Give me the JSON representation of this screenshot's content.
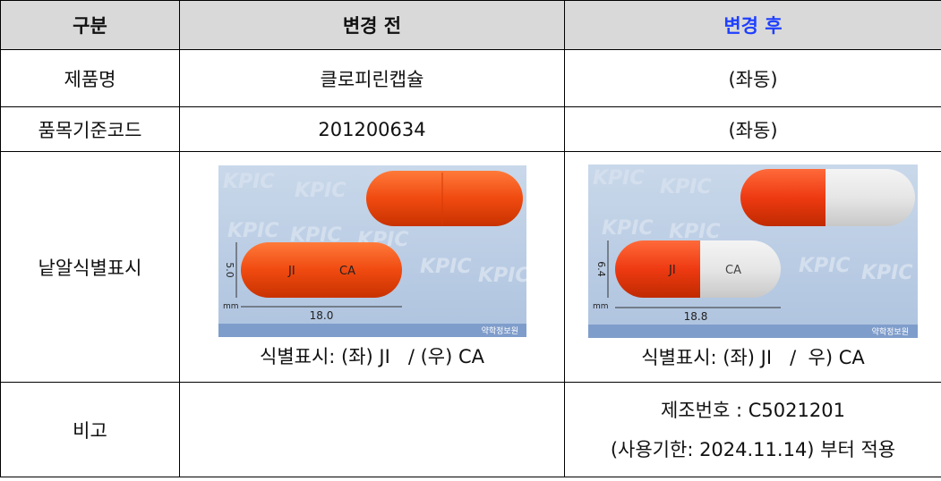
{
  "table": {
    "header": [
      "구분",
      "변경 전",
      "변경 후"
    ],
    "rows": [
      {
        "label": "제품명",
        "before": "클로피린캡슐",
        "after": "(좌동)"
      },
      {
        "label": "품목기준코드",
        "before": "201200634",
        "after": "(좌동)"
      },
      {
        "label": "낱알식별표시",
        "before": {
          "image": {
            "watermark": "KPIC",
            "imprint": [
              "JI",
              "CA"
            ],
            "thickness": "5.0",
            "unit": "mm",
            "length": "18.0",
            "source": "약학정보원"
          },
          "caption": "식별표시: (좌) JI   / (우) CA"
        },
        "after": {
          "image": {
            "watermark": "KPIC",
            "imprint": [
              "JI",
              "CA"
            ],
            "thickness": "6.4",
            "unit": "mm",
            "length": "18.8",
            "source": "약학정보원"
          },
          "caption": "식별표시: (좌) JI   /  우) CA"
        }
      },
      {
        "label": "비고",
        "after": [
          "제조번호 : C5021201",
          "(사용기한: 2024.11.14) 부터 적용"
        ]
      }
    ]
  }
}
